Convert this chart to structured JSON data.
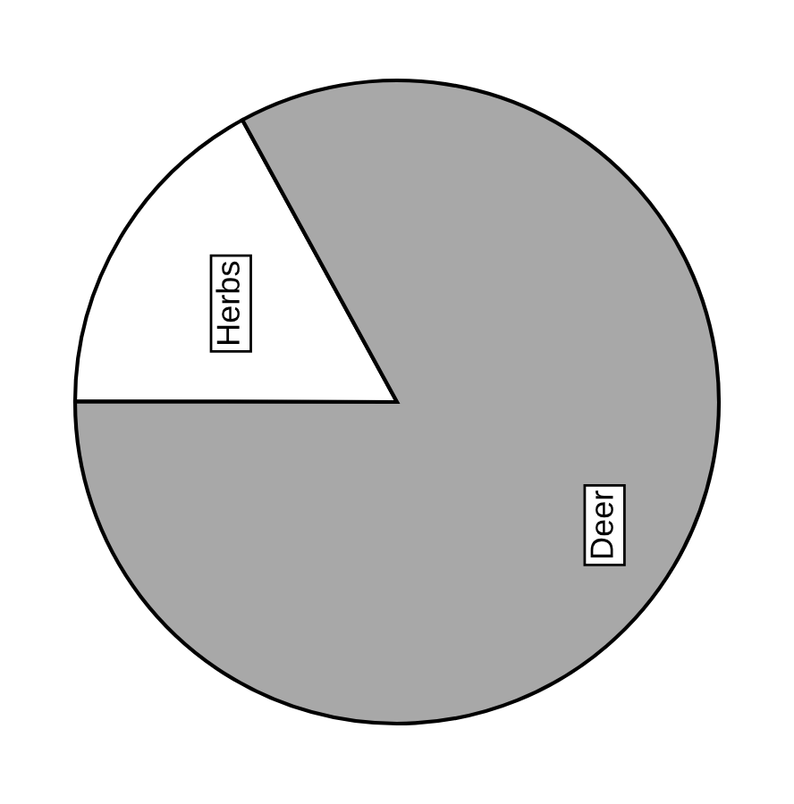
{
  "chart_data": {
    "type": "pie",
    "categories": [
      "Herbs",
      "Deer"
    ],
    "values": [
      17,
      83
    ],
    "colors": [
      "#ffffff",
      "#a8a8a8"
    ]
  }
}
